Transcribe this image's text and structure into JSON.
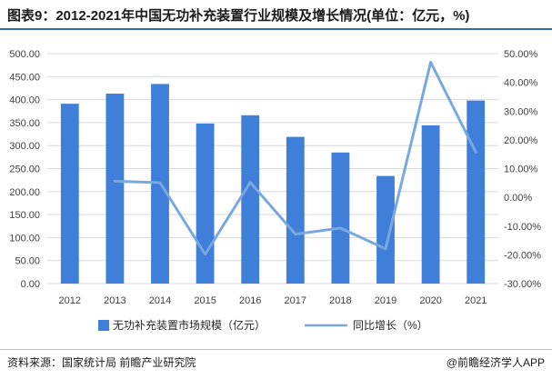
{
  "header": {
    "title": "图表9：2012-2021年中国无功补充装置行业规模及增长情况(单位：亿元，%)"
  },
  "footer": {
    "source": "资料来源：国家统计局 前瞻产业研究院",
    "brand": "@前瞻经济学人APP"
  },
  "colors": {
    "bar": "#3f7fd9",
    "line": "#79a8e0",
    "rule": "#2f6fb6"
  },
  "chart_data": {
    "type": "bar",
    "categories": [
      "2012",
      "2013",
      "2014",
      "2015",
      "2016",
      "2017",
      "2018",
      "2019",
      "2020",
      "2021"
    ],
    "series": [
      {
        "name": "无功补充装置市场规模（亿元）",
        "type": "bar",
        "axis": "left",
        "values": [
          391,
          413,
          434,
          348,
          366,
          319,
          285,
          234,
          344,
          398
        ]
      },
      {
        "name": "同比增长（%）",
        "type": "line",
        "axis": "right",
        "values": [
          null,
          5.6,
          5.1,
          -19.8,
          5.2,
          -12.8,
          -10.7,
          -17.9,
          47.0,
          15.7
        ]
      }
    ],
    "y_left": {
      "ylim": [
        0,
        500
      ],
      "ticks": [
        "0.00",
        "50.00",
        "100.00",
        "150.00",
        "200.00",
        "250.00",
        "300.00",
        "350.00",
        "400.00",
        "450.00",
        "500.00"
      ]
    },
    "y_right": {
      "ylim": [
        -30,
        50
      ],
      "ticks": [
        "-30.00%",
        "-20.00%",
        "-10.00%",
        "0.00%",
        "10.00%",
        "20.00%",
        "30.00%",
        "40.00%",
        "50.00%"
      ]
    },
    "grid": true,
    "legend_position": "bottom"
  }
}
